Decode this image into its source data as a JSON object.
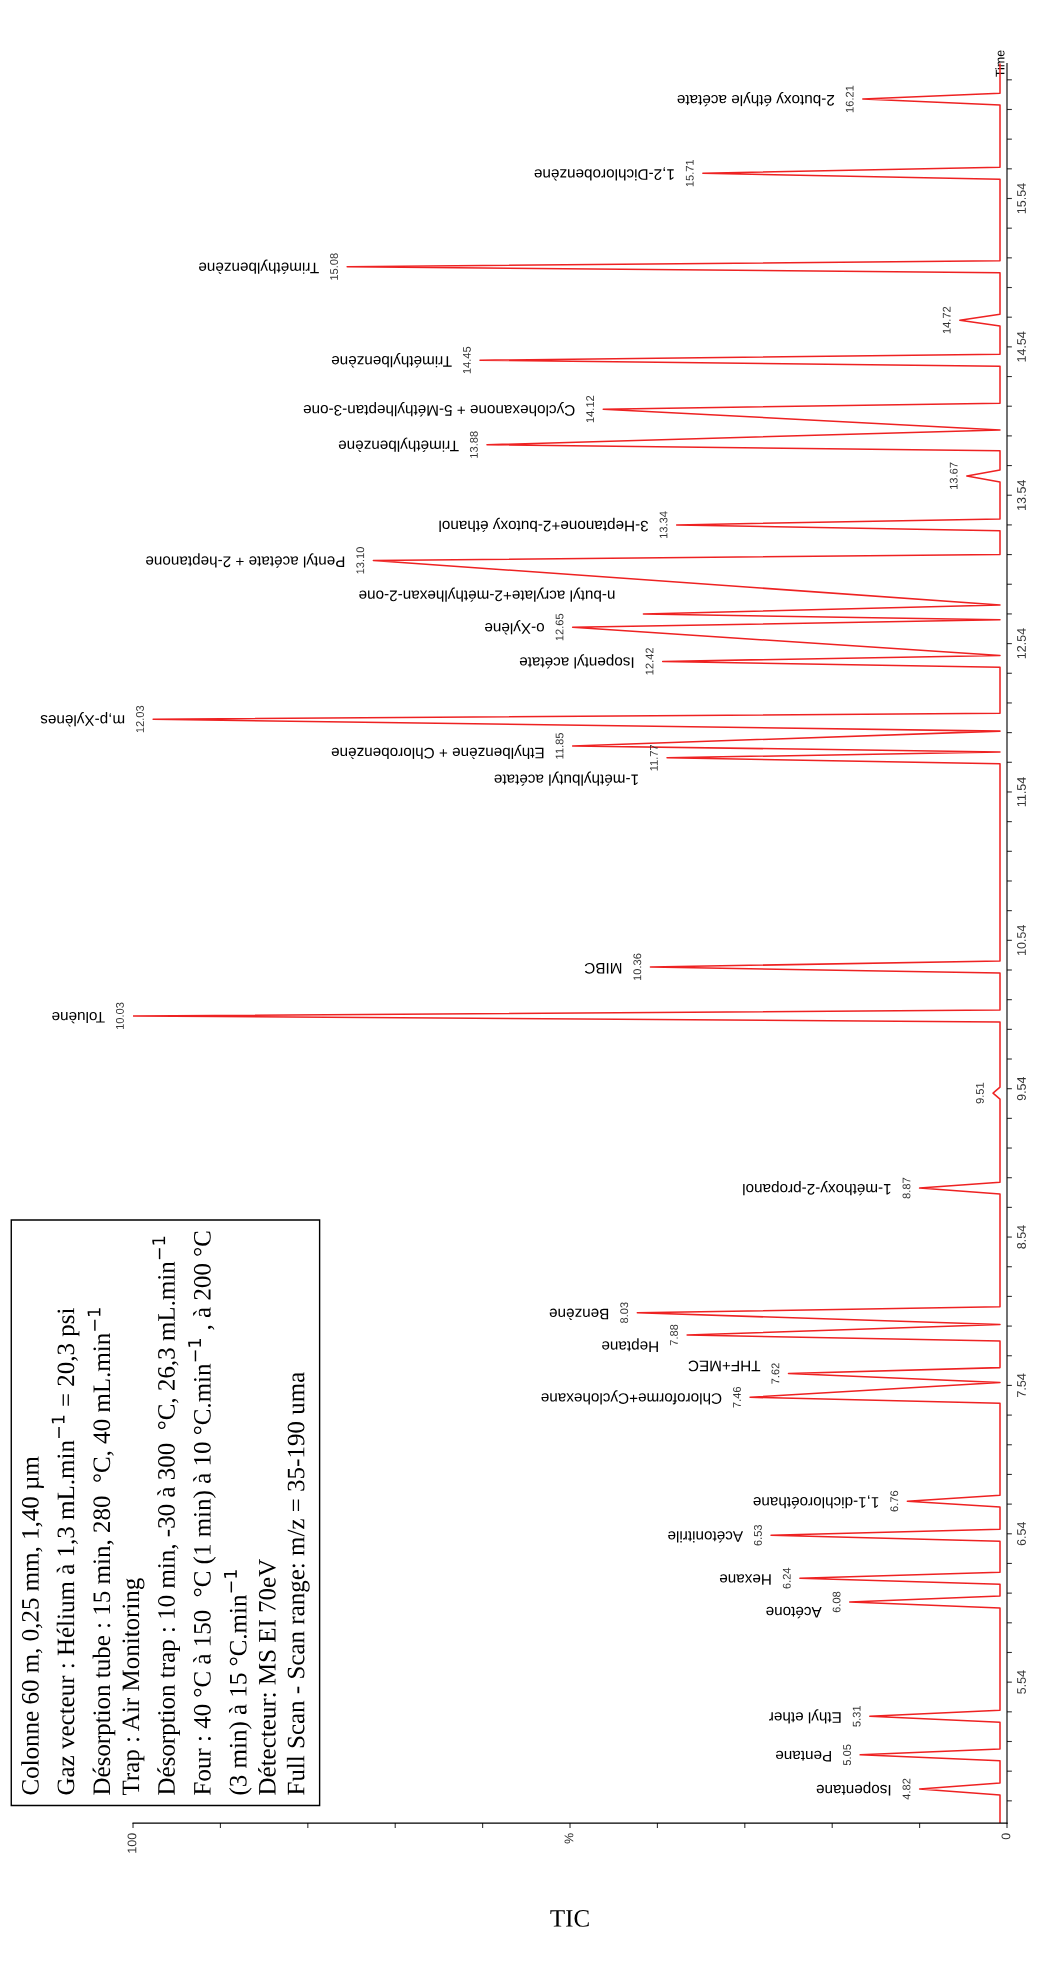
{
  "chart_data": {
    "type": "line",
    "xlabel": "TIC",
    "ylabel": "Time",
    "xlim": [
      100,
      0
    ],
    "ylim": [
      4.59,
      16.45
    ],
    "xticks": [
      100,
      {
        "value": 90,
        "label": null
      },
      {
        "value": 80,
        "label": null
      },
      {
        "value": 70,
        "label": null
      },
      {
        "value": 60,
        "label": null
      },
      {
        "value": 50,
        "label": "%"
      },
      {
        "value": 40,
        "label": null
      },
      {
        "value": 30,
        "label": null
      },
      {
        "value": 20,
        "label": null
      },
      {
        "value": 10,
        "label": null
      },
      0
    ],
    "yticks": [
      {
        "value": 4.74,
        "label": null
      },
      {
        "value": 4.94,
        "label": null
      },
      {
        "value": 5.14,
        "label": null
      },
      {
        "value": 5.34,
        "label": null
      },
      5.54,
      {
        "value": 5.74,
        "label": null
      },
      {
        "value": 5.94,
        "label": null
      },
      {
        "value": 6.14,
        "label": null
      },
      {
        "value": 6.34,
        "label": null
      },
      6.54,
      {
        "value": 6.74,
        "label": null
      },
      {
        "value": 6.94,
        "label": null
      },
      {
        "value": 7.14,
        "label": null
      },
      {
        "value": 7.34,
        "label": null
      },
      7.54,
      {
        "value": 7.74,
        "label": null
      },
      {
        "value": 7.94,
        "label": null
      },
      {
        "value": 8.14,
        "label": null
      },
      {
        "value": 8.34,
        "label": null
      },
      8.54,
      {
        "value": 8.74,
        "label": null
      },
      {
        "value": 8.94,
        "label": null
      },
      {
        "value": 9.14,
        "label": null
      },
      {
        "value": 9.34,
        "label": null
      },
      9.54,
      {
        "value": 9.74,
        "label": null
      },
      {
        "value": 9.94,
        "label": null
      },
      {
        "value": 10.14,
        "label": null
      },
      {
        "value": 10.34,
        "label": null
      },
      10.54,
      {
        "value": 10.74,
        "label": null
      },
      {
        "value": 10.94,
        "label": null
      },
      {
        "value": 11.14,
        "label": null
      },
      {
        "value": 11.34,
        "label": null
      },
      11.54,
      {
        "value": 11.74,
        "label": null
      },
      {
        "value": 11.94,
        "label": null
      },
      {
        "value": 12.14,
        "label": null
      },
      {
        "value": 12.34,
        "label": null
      },
      12.54,
      {
        "value": 12.74,
        "label": null
      },
      {
        "value": 12.94,
        "label": null
      },
      {
        "value": 13.14,
        "label": null
      },
      {
        "value": 13.34,
        "label": null
      },
      13.54,
      {
        "value": 13.74,
        "label": null
      },
      {
        "value": 13.94,
        "label": null
      },
      {
        "value": 14.14,
        "label": null
      },
      {
        "value": 14.34,
        "label": null
      },
      14.54,
      {
        "value": 14.74,
        "label": null
      },
      {
        "value": 14.94,
        "label": null
      },
      {
        "value": 15.14,
        "label": null
      },
      {
        "value": 15.34,
        "label": null
      },
      15.54,
      {
        "value": 15.74,
        "label": null
      },
      {
        "value": 15.94,
        "label": null
      },
      {
        "value": 16.14,
        "label": null
      },
      {
        "value": 16.34,
        "label": null
      }
    ],
    "grid": false,
    "legend": false,
    "marker": "none",
    "line_style": "solid",
    "series": [
      {
        "color": "#ee2222",
        "x": [
          0.8,
          0.8,
          10,
          0.8,
          0.8,
          16.8,
          0.8,
          0.8,
          15.7,
          0.8,
          0.8,
          18,
          0.8,
          0.8,
          23.7,
          0.8,
          0.8,
          27,
          0.8,
          0.8,
          11.4,
          0.8,
          0.8,
          29.4,
          0.8,
          25,
          0.8,
          0.8,
          36.6,
          0.8,
          42.3,
          0.8,
          0.8,
          10,
          0.8,
          0.8,
          1.6,
          0.8,
          0.8,
          100,
          0.8,
          0.8,
          40.8,
          0.8,
          0.8,
          38.9,
          0.8,
          49.7,
          0.8,
          97.7,
          0.8,
          0.8,
          39.4,
          0.8,
          49.7,
          0.8,
          41.6,
          0.8,
          72.5,
          0.8,
          0.8,
          37.8,
          0.8,
          0.8,
          4.6,
          0.8,
          0.8,
          59.5,
          0.8,
          46.2,
          0.8,
          0.8,
          60.3,
          0.8,
          0.8,
          5.4,
          0.8,
          0.8,
          75.5,
          0.8,
          0.8,
          34.8,
          0.8,
          0.8,
          16.5,
          0.8,
          0.8
        ],
        "values": [
          4.59,
          4.78,
          4.82,
          4.86,
          5.01,
          5.05,
          5.09,
          5.27,
          5.31,
          5.35,
          6.04,
          6.08,
          6.12,
          6.2,
          6.24,
          6.28,
          6.49,
          6.53,
          6.57,
          6.72,
          6.76,
          6.8,
          7.42,
          7.46,
          7.56,
          7.62,
          7.66,
          7.84,
          7.88,
          7.95,
          8.03,
          8.07,
          8.83,
          8.87,
          8.91,
          9.47,
          9.51,
          9.55,
          9.99,
          10.03,
          10.07,
          10.32,
          10.36,
          10.4,
          11.73,
          11.77,
          11.81,
          11.85,
          11.95,
          12.03,
          12.07,
          12.38,
          12.42,
          12.46,
          12.65,
          12.7,
          12.74,
          12.8,
          13.1,
          13.14,
          13.3,
          13.34,
          13.38,
          13.63,
          13.67,
          13.71,
          13.84,
          13.88,
          13.98,
          14.12,
          14.16,
          14.41,
          14.45,
          14.49,
          14.68,
          14.72,
          14.76,
          15.04,
          15.08,
          15.12,
          15.67,
          15.71,
          15.75,
          16.17,
          16.21,
          16.25,
          16.45
        ],
        "value_labels": [
          null,
          null,
          "4.82",
          null,
          null,
          "5.05",
          null,
          null,
          "5.31",
          null,
          null,
          "6.08",
          null,
          null,
          "6.24",
          null,
          null,
          "6.53",
          null,
          null,
          "6.76",
          null,
          null,
          "7.46",
          null,
          "7.62",
          null,
          null,
          "7.88",
          null,
          "8.03",
          null,
          null,
          "8.87",
          null,
          null,
          "9.51",
          null,
          null,
          "10.03",
          null,
          null,
          "10.36",
          null,
          null,
          "11.77",
          null,
          "11.85",
          null,
          "12.03",
          null,
          null,
          "12.42",
          null,
          "12.65",
          null,
          null,
          null,
          "13.10",
          null,
          null,
          "13.34",
          null,
          null,
          "13.67",
          null,
          null,
          "13.88",
          null,
          "14.12",
          null,
          null,
          "14.45",
          null,
          null,
          "14.72",
          null,
          null,
          "15.08",
          null,
          null,
          "15.71",
          null,
          null,
          "16.21",
          null,
          null
        ]
      }
    ],
    "annotations": [
      {
        "text": "Isopentane",
        "x": 10,
        "y": 4.82
      },
      {
        "text": "Pentane",
        "x": 16.8,
        "y": 5.05
      },
      {
        "text": "Ethyl ether",
        "x": 15.7,
        "y": 5.31
      },
      {
        "text": "Acétone",
        "x": 18,
        "y": 6.08
      },
      {
        "text": "Hexane",
        "x": 23.7,
        "y": 6.24
      },
      {
        "text": "Acétonitrile",
        "x": 27,
        "y": 6.53
      },
      {
        "text": "1,1-dichloroéthane",
        "x": 11.4,
        "y": 6.76
      },
      {
        "text": "Chloroforme+Cyclohexane",
        "x": 29.4,
        "y": 7.46
      },
      {
        "text": "THF+MEC",
        "x": 25,
        "y": 7.62
      },
      {
        "text": "Heptane",
        "x": 36.6,
        "y": 7.88
      },
      {
        "text": "Benzène",
        "x": 42.3,
        "y": 8.03
      },
      {
        "text": "1-méthoxy-2-propanol",
        "x": 10,
        "y": 8.87
      },
      {
        "text": "Toluène",
        "x": 100,
        "y": 10.03
      },
      {
        "text": "MIBC",
        "x": 40.8,
        "y": 10.36
      },
      {
        "text": "1-méthylbutyl acétate",
        "x": 38.9,
        "y": 11.77
      },
      {
        "text": "Ethylbenzène + Chlorobenzène",
        "x": 49.7,
        "y": 11.85
      },
      {
        "text": "m,p-Xylènes",
        "x": 97.7,
        "y": 12.03
      },
      {
        "text": "Isopentyl acétate",
        "x": 39.4,
        "y": 12.42
      },
      {
        "text": "o-Xylène",
        "x": 49.7,
        "y": 12.65
      },
      {
        "text": "n-butyl acrylate+2-méthylhexan-2-one",
        "x": 41.6,
        "y": 12.74
      },
      {
        "text": "Pentyl acétate + 2-heptanone",
        "x": 72.5,
        "y": 13.1
      },
      {
        "text": "3-Heptanone+2-butoxy éthanol",
        "x": 37.8,
        "y": 13.34
      },
      {
        "text": "Triméthylbenzène",
        "x": 59.5,
        "y": 13.88
      },
      {
        "text": "Cyclohexanone + 5-Méthylheptan-3-one",
        "x": 46.2,
        "y": 14.12
      },
      {
        "text": "Triméthylbenzène",
        "x": 60.3,
        "y": 14.45
      },
      {
        "text": "Triméthylbenzène",
        "x": 75.5,
        "y": 15.08
      },
      {
        "text": "1,2-Dichlorobenzène",
        "x": 34.8,
        "y": 15.71
      },
      {
        "text": "2-butoxy éthyle acétate",
        "x": 16.5,
        "y": 16.21
      },
      "Colonne 60 m, 0,25 mm, 1,40 µm\nGaz vecteur : Hélium à 1,3 mL.min$^{−1}$ = 20,3 psi\nDésorption tube : 15 min, 280  °C, 40 mL.min$^{−1}$\nTrap : Air Monitoring\nDésorption trap : 10 min, -30 à 300  °C, 26,3 mL.min$^{−1}$\nFour : 40 °C à 150  °C (1 min) à 10 °C.min$^{−1}$ , à 200 °C\n(3 min) à 15 °C.min$^{−1}$\nDétecteur: MS EI 70eV\nFull Scan - Scan range: m/z = 35-190 uma"
    ]
  }
}
